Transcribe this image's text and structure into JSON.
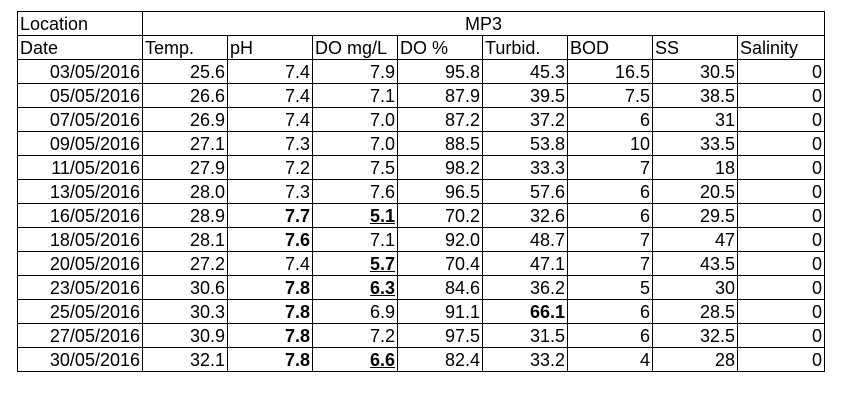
{
  "table": {
    "location_label": "Location",
    "station": "MP3",
    "columns": [
      "Date",
      "Temp.",
      "pH",
      "DO mg/L",
      "DO %",
      "Turbid.",
      "BOD",
      "SS",
      "Salinity"
    ],
    "rows": [
      [
        "03/05/2016",
        "25.6",
        "7.4",
        "7.9",
        "95.8",
        "45.3",
        "16.5",
        "30.5",
        "0"
      ],
      [
        "05/05/2016",
        "26.6",
        "7.4",
        "7.1",
        "87.9",
        "39.5",
        "7.5",
        "38.5",
        "0"
      ],
      [
        "07/05/2016",
        "26.9",
        "7.4",
        "7.0",
        "87.2",
        "37.2",
        "6",
        "31",
        "0"
      ],
      [
        "09/05/2016",
        "27.1",
        "7.3",
        "7.0",
        "88.5",
        "53.8",
        "10",
        "33.5",
        "0"
      ],
      [
        "11/05/2016",
        "27.9",
        "7.2",
        "7.5",
        "98.2",
        "33.3",
        "7",
        "18",
        "0"
      ],
      [
        "13/05/2016",
        "28.0",
        "7.3",
        "7.6",
        "96.5",
        "57.6",
        "6",
        "20.5",
        "0"
      ],
      [
        "16/05/2016",
        "28.9",
        "7.7",
        "5.1",
        "70.2",
        "32.6",
        "6",
        "29.5",
        "0"
      ],
      [
        "18/05/2016",
        "28.1",
        "7.6",
        "7.1",
        "92.0",
        "48.7",
        "7",
        "47",
        "0"
      ],
      [
        "20/05/2016",
        "27.2",
        "7.4",
        "5.7",
        "70.4",
        "47.1",
        "7",
        "43.5",
        "0"
      ],
      [
        "23/05/2016",
        "30.6",
        "7.8",
        "6.3",
        "84.6",
        "36.2",
        "5",
        "30",
        "0"
      ],
      [
        "25/05/2016",
        "30.3",
        "7.8",
        "6.9",
        "91.1",
        "66.1",
        "6",
        "28.5",
        "0"
      ],
      [
        "27/05/2016",
        "30.9",
        "7.8",
        "7.2",
        "97.5",
        "31.5",
        "6",
        "32.5",
        "0"
      ],
      [
        "30/05/2016",
        "32.1",
        "7.8",
        "6.6",
        "82.4",
        "33.2",
        "4",
        "28",
        "0"
      ]
    ],
    "emphasis": {
      "bold": [
        [
          6,
          2
        ],
        [
          7,
          2
        ],
        [
          9,
          2
        ],
        [
          10,
          2
        ],
        [
          10,
          5
        ],
        [
          11,
          2
        ],
        [
          12,
          2
        ]
      ],
      "bold_underline": [
        [
          6,
          3
        ],
        [
          8,
          3
        ],
        [
          9,
          3
        ],
        [
          12,
          3
        ]
      ]
    }
  }
}
